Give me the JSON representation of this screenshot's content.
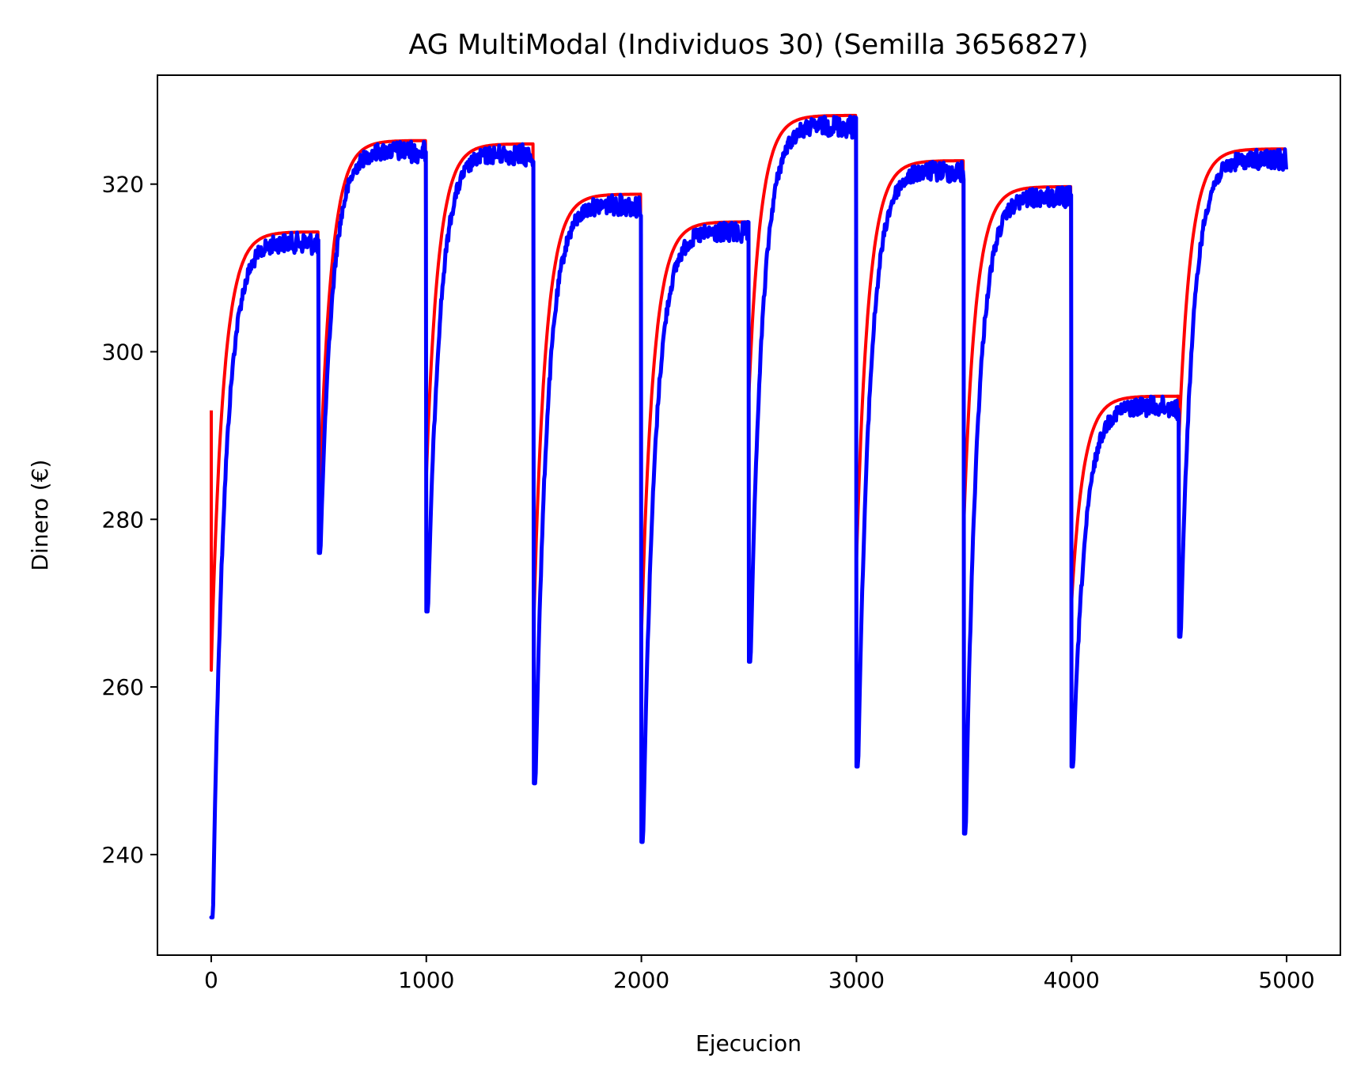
{
  "chart_data": {
    "type": "line",
    "title": "AG MultiModal (Individuos 30) (Semilla 3656827)",
    "xlabel": "Ejecucion",
    "ylabel": "Dinero (€)",
    "xlim": [
      -250,
      5250
    ],
    "ylim": [
      228,
      333
    ],
    "xticks": [
      0,
      1000,
      2000,
      3000,
      4000,
      5000
    ],
    "xtick_labels": [
      "0",
      "1000",
      "2000",
      "3000",
      "4000",
      "5000"
    ],
    "yticks": [
      240,
      260,
      280,
      300,
      320
    ],
    "ytick_labels": [
      "240",
      "260",
      "280",
      "300",
      "320"
    ],
    "grid": false,
    "legend": "none",
    "colors": {
      "red_series": "#ff0000",
      "blue_series": "#0000ff"
    },
    "segments": [
      {
        "start": 0,
        "end": 499,
        "red_start": 262,
        "blue_start": 232.5,
        "final": 314.3
      },
      {
        "start": 500,
        "end": 999,
        "red_start": 280,
        "blue_start": 276,
        "final": 325.2
      },
      {
        "start": 1000,
        "end": 1499,
        "red_start": 285,
        "blue_start": 269,
        "final": 324.8
      },
      {
        "start": 1500,
        "end": 1999,
        "red_start": 268,
        "blue_start": 248.5,
        "final": 318.8
      },
      {
        "start": 2000,
        "end": 2499,
        "red_start": 266,
        "blue_start": 241.5,
        "final": 315.5
      },
      {
        "start": 2500,
        "end": 2999,
        "red_start": 295,
        "blue_start": 263,
        "final": 328.2
      },
      {
        "start": 3000,
        "end": 3499,
        "red_start": 275,
        "blue_start": 250.5,
        "final": 322.8
      },
      {
        "start": 3500,
        "end": 3999,
        "red_start": 280,
        "blue_start": 242.5,
        "final": 319.7
      },
      {
        "start": 4000,
        "end": 4499,
        "red_start": 270,
        "blue_start": 250.5,
        "final": 294.7
      },
      {
        "start": 4500,
        "end": 4999,
        "red_start": 290,
        "blue_start": 266,
        "final": 324.2
      }
    ]
  }
}
